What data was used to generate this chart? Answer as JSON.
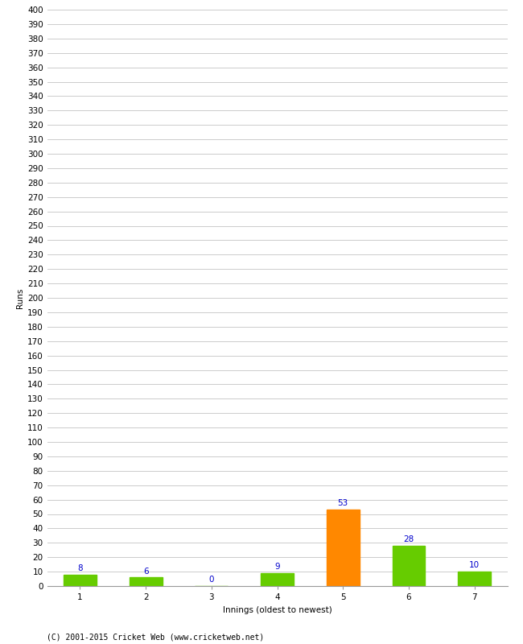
{
  "xlabel": "Innings (oldest to newest)",
  "ylabel": "Runs",
  "categories": [
    "1",
    "2",
    "3",
    "4",
    "5",
    "6",
    "7"
  ],
  "values": [
    8,
    6,
    0,
    9,
    53,
    28,
    10
  ],
  "bar_colors": [
    "#66cc00",
    "#66cc00",
    "#66cc00",
    "#66cc00",
    "#ff8800",
    "#66cc00",
    "#66cc00"
  ],
  "label_color": "#0000cc",
  "ylim": [
    0,
    400
  ],
  "yticks": [
    0,
    10,
    20,
    30,
    40,
    50,
    60,
    70,
    80,
    90,
    100,
    110,
    120,
    130,
    140,
    150,
    160,
    170,
    180,
    190,
    200,
    210,
    220,
    230,
    240,
    250,
    260,
    270,
    280,
    290,
    300,
    310,
    320,
    330,
    340,
    350,
    360,
    370,
    380,
    390,
    400
  ],
  "background_color": "#ffffff",
  "grid_color": "#cccccc",
  "footer": "(C) 2001-2015 Cricket Web (www.cricketweb.net)",
  "bar_width": 0.5,
  "label_fontsize": 7.5,
  "axis_fontsize": 7.5,
  "ylabel_fontsize": 7.5,
  "xlabel_fontsize": 7.5,
  "footer_fontsize": 7
}
